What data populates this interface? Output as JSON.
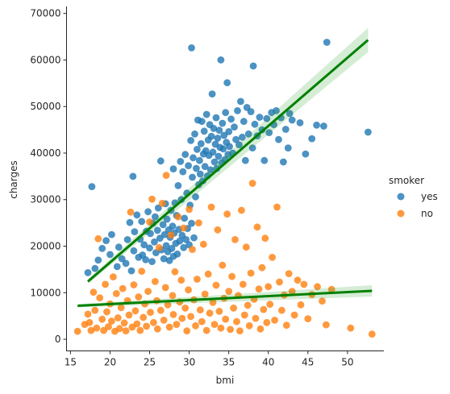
{
  "chart_data": {
    "type": "scatter",
    "title": "",
    "xlabel": "bmi",
    "ylabel": "charges",
    "xlim": [
      14.5,
      54.6
    ],
    "ylim": [
      -2500,
      71500
    ],
    "xticks": [
      15,
      20,
      25,
      30,
      35,
      40,
      45,
      50
    ],
    "yticks": [
      0,
      10000,
      20000,
      30000,
      40000,
      50000,
      60000,
      70000
    ],
    "grid": false,
    "legend": {
      "title": "smoker",
      "placement": "right"
    },
    "series": [
      {
        "name": "yes",
        "color": "#1f77b4",
        "regression": {
          "x": [
            17.2,
            52.6
          ],
          "y": [
            12400,
            64300
          ],
          "ci_color": "#2ca02c"
        },
        "points": [
          [
            17.2,
            14300
          ],
          [
            17.7,
            32800
          ],
          [
            18.1,
            15200
          ],
          [
            18.5,
            17000
          ],
          [
            19.0,
            19500
          ],
          [
            19.5,
            21200
          ],
          [
            20.0,
            18200
          ],
          [
            20.2,
            22500
          ],
          [
            20.9,
            15600
          ],
          [
            21.1,
            19800
          ],
          [
            21.5,
            17300
          ],
          [
            22.0,
            16300
          ],
          [
            22.2,
            21400
          ],
          [
            22.5,
            25100
          ],
          [
            22.7,
            14700
          ],
          [
            22.9,
            35000
          ],
          [
            23.0,
            19000
          ],
          [
            23.1,
            23100
          ],
          [
            23.4,
            26700
          ],
          [
            23.6,
            17600
          ],
          [
            23.8,
            21500
          ],
          [
            24.0,
            25300
          ],
          [
            24.1,
            18100
          ],
          [
            24.3,
            20300
          ],
          [
            24.5,
            17100
          ],
          [
            24.6,
            23200
          ],
          [
            24.8,
            27400
          ],
          [
            25.0,
            19600
          ],
          [
            25.1,
            22700
          ],
          [
            25.3,
            16700
          ],
          [
            25.4,
            24900
          ],
          [
            25.6,
            20900
          ],
          [
            25.7,
            26300
          ],
          [
            25.8,
            18600
          ],
          [
            26.0,
            23400
          ],
          [
            26.1,
            28200
          ],
          [
            26.3,
            21700
          ],
          [
            26.4,
            38300
          ],
          [
            26.5,
            19200
          ],
          [
            26.7,
            24600
          ],
          [
            26.8,
            17300
          ],
          [
            26.9,
            22500
          ],
          [
            27.0,
            29100
          ],
          [
            27.1,
            20100
          ],
          [
            27.2,
            25800
          ],
          [
            27.3,
            18800
          ],
          [
            27.4,
            23500
          ],
          [
            27.5,
            16900
          ],
          [
            27.6,
            21900
          ],
          [
            27.7,
            27700
          ],
          [
            27.8,
            19500
          ],
          [
            27.9,
            24300
          ],
          [
            28.0,
            17800
          ],
          [
            28.0,
            36600
          ],
          [
            28.1,
            22800
          ],
          [
            28.2,
            29300
          ],
          [
            28.3,
            20600
          ],
          [
            28.4,
            26600
          ],
          [
            28.5,
            18300
          ],
          [
            28.6,
            33000
          ],
          [
            28.7,
            23600
          ],
          [
            28.8,
            21100
          ],
          [
            28.9,
            38200
          ],
          [
            29.0,
            30000
          ],
          [
            29.1,
            22300
          ],
          [
            29.2,
            36000
          ],
          [
            29.3,
            19700
          ],
          [
            29.4,
            26000
          ],
          [
            29.5,
            39700
          ],
          [
            29.6,
            21400
          ],
          [
            29.7,
            31400
          ],
          [
            29.8,
            23800
          ],
          [
            29.9,
            37300
          ],
          [
            30.0,
            20300
          ],
          [
            30.1,
            28800
          ],
          [
            30.2,
            42700
          ],
          [
            30.3,
            24900
          ],
          [
            30.3,
            62600
          ],
          [
            30.4,
            34800
          ],
          [
            30.5,
            39000
          ],
          [
            30.6,
            21800
          ],
          [
            30.7,
            44100
          ],
          [
            30.8,
            30600
          ],
          [
            30.9,
            36700
          ],
          [
            31.0,
            40800
          ],
          [
            31.1,
            47100
          ],
          [
            31.2,
            33200
          ],
          [
            31.3,
            38400
          ],
          [
            31.4,
            35500
          ],
          [
            31.5,
            42000
          ],
          [
            31.6,
            46800
          ],
          [
            31.7,
            34000
          ],
          [
            31.8,
            39800
          ],
          [
            31.9,
            44700
          ],
          [
            32.0,
            37100
          ],
          [
            32.1,
            40500
          ],
          [
            32.2,
            48300
          ],
          [
            32.3,
            35100
          ],
          [
            32.4,
            42800
          ],
          [
            32.5,
            39500
          ],
          [
            32.6,
            46100
          ],
          [
            32.7,
            36400
          ],
          [
            32.8,
            43600
          ],
          [
            32.9,
            52700
          ],
          [
            33.0,
            40200
          ],
          [
            33.1,
            45300
          ],
          [
            33.2,
            38100
          ],
          [
            33.3,
            41900
          ],
          [
            33.4,
            47600
          ],
          [
            33.5,
            36700
          ],
          [
            33.6,
            43200
          ],
          [
            33.7,
            39300
          ],
          [
            33.8,
            44900
          ],
          [
            33.9,
            41200
          ],
          [
            34.0,
            60000
          ],
          [
            34.1,
            37900
          ],
          [
            34.2,
            46400
          ],
          [
            34.3,
            40900
          ],
          [
            34.4,
            43800
          ],
          [
            34.5,
            38600
          ],
          [
            34.6,
            48700
          ],
          [
            34.7,
            42300
          ],
          [
            34.8,
            55100
          ],
          [
            34.9,
            39700
          ],
          [
            35.0,
            44600
          ],
          [
            35.1,
            41400
          ],
          [
            35.3,
            47300
          ],
          [
            35.5,
            40000
          ],
          [
            35.7,
            45600
          ],
          [
            35.9,
            42900
          ],
          [
            36.1,
            49100
          ],
          [
            36.3,
            41800
          ],
          [
            36.5,
            51100
          ],
          [
            36.7,
            43400
          ],
          [
            36.9,
            46800
          ],
          [
            37.1,
            38400
          ],
          [
            37.3,
            49800
          ],
          [
            37.5,
            44100
          ],
          [
            37.8,
            48900
          ],
          [
            38.0,
            41100
          ],
          [
            38.1,
            58700
          ],
          [
            38.3,
            46200
          ],
          [
            38.6,
            43700
          ],
          [
            38.9,
            47700
          ],
          [
            39.2,
            45000
          ],
          [
            39.5,
            38400
          ],
          [
            39.8,
            47400
          ],
          [
            40.1,
            44400
          ],
          [
            40.4,
            48700
          ],
          [
            40.7,
            46100
          ],
          [
            41.0,
            49100
          ],
          [
            41.3,
            42900
          ],
          [
            41.6,
            47600
          ],
          [
            41.9,
            38100
          ],
          [
            42.2,
            45100
          ],
          [
            42.5,
            41100
          ],
          [
            42.7,
            48500
          ],
          [
            43.0,
            47100
          ],
          [
            44.0,
            46500
          ],
          [
            44.7,
            39800
          ],
          [
            45.5,
            43100
          ],
          [
            46.1,
            46000
          ],
          [
            47.0,
            45800
          ],
          [
            47.4,
            63800
          ],
          [
            52.6,
            44500
          ]
        ]
      },
      {
        "name": "no",
        "color": "#ff7f0e",
        "regression": {
          "x": [
            15.9,
            53.1
          ],
          "y": [
            7200,
            10400
          ],
          "ci_color": "#2ca02c"
        },
        "points": [
          [
            15.9,
            1700
          ],
          [
            16.8,
            3200
          ],
          [
            17.2,
            5400
          ],
          [
            17.4,
            3600
          ],
          [
            17.6,
            1900
          ],
          [
            17.9,
            10100
          ],
          [
            18.1,
            6200
          ],
          [
            18.3,
            2400
          ],
          [
            18.5,
            21600
          ],
          [
            18.7,
            8900
          ],
          [
            19.0,
            4300
          ],
          [
            19.2,
            1900
          ],
          [
            19.4,
            11800
          ],
          [
            19.6,
            5900
          ],
          [
            19.8,
            2700
          ],
          [
            20.0,
            7600
          ],
          [
            20.2,
            3900
          ],
          [
            20.4,
            13400
          ],
          [
            20.6,
            1700
          ],
          [
            20.8,
            9800
          ],
          [
            21.0,
            4600
          ],
          [
            21.2,
            2300
          ],
          [
            21.4,
            6800
          ],
          [
            21.6,
            10900
          ],
          [
            21.8,
            3500
          ],
          [
            22.0,
            1800
          ],
          [
            22.2,
            8300
          ],
          [
            22.4,
            5200
          ],
          [
            22.6,
            27300
          ],
          [
            22.8,
            2600
          ],
          [
            23.0,
            11700
          ],
          [
            23.2,
            6100
          ],
          [
            23.4,
            3300
          ],
          [
            23.6,
            9100
          ],
          [
            23.8,
            1900
          ],
          [
            24.0,
            14600
          ],
          [
            24.2,
            4700
          ],
          [
            24.4,
            7600
          ],
          [
            24.6,
            2800
          ],
          [
            24.8,
            10300
          ],
          [
            25.0,
            25200
          ],
          [
            25.1,
            5800
          ],
          [
            25.3,
            30100
          ],
          [
            25.5,
            3600
          ],
          [
            25.7,
            12400
          ],
          [
            25.9,
            8300
          ],
          [
            26.0,
            2200
          ],
          [
            26.2,
            19700
          ],
          [
            26.4,
            6200
          ],
          [
            26.6,
            29200
          ],
          [
            26.8,
            4100
          ],
          [
            27.0,
            11100
          ],
          [
            27.1,
            35200
          ],
          [
            27.3,
            7400
          ],
          [
            27.5,
            2600
          ],
          [
            27.7,
            22400
          ],
          [
            27.9,
            9400
          ],
          [
            28.0,
            5300
          ],
          [
            28.2,
            14500
          ],
          [
            28.4,
            3200
          ],
          [
            28.6,
            26300
          ],
          [
            28.8,
            8000
          ],
          [
            29.0,
            12700
          ],
          [
            29.1,
            4500
          ],
          [
            29.3,
            23900
          ],
          [
            29.5,
            6700
          ],
          [
            29.7,
            1800
          ],
          [
            29.9,
            10600
          ],
          [
            30.0,
            27900
          ],
          [
            30.2,
            4900
          ],
          [
            30.4,
            19300
          ],
          [
            30.6,
            8500
          ],
          [
            30.8,
            2900
          ],
          [
            31.0,
            12900
          ],
          [
            31.2,
            25000
          ],
          [
            31.4,
            6300
          ],
          [
            31.6,
            3800
          ],
          [
            31.8,
            20400
          ],
          [
            32.0,
            9700
          ],
          [
            32.2,
            1900
          ],
          [
            32.4,
            14000
          ],
          [
            32.6,
            5600
          ],
          [
            32.8,
            28400
          ],
          [
            33.0,
            7900
          ],
          [
            33.2,
            3200
          ],
          [
            33.4,
            11600
          ],
          [
            33.6,
            23500
          ],
          [
            33.8,
            6000
          ],
          [
            34.0,
            2400
          ],
          [
            34.2,
            15900
          ],
          [
            34.4,
            8800
          ],
          [
            34.6,
            4300
          ],
          [
            34.8,
            26900
          ],
          [
            35.0,
            10300
          ],
          [
            35.2,
            2100
          ],
          [
            35.4,
            13500
          ],
          [
            35.6,
            6700
          ],
          [
            35.8,
            21400
          ],
          [
            36.0,
            3800
          ],
          [
            36.2,
            9400
          ],
          [
            36.4,
            1800
          ],
          [
            36.6,
            27700
          ],
          [
            36.8,
            11800
          ],
          [
            37.0,
            5200
          ],
          [
            37.2,
            19800
          ],
          [
            37.4,
            7300
          ],
          [
            37.6,
            2900
          ],
          [
            37.8,
            14200
          ],
          [
            38.0,
            33500
          ],
          [
            38.2,
            8600
          ],
          [
            38.4,
            4500
          ],
          [
            38.6,
            24100
          ],
          [
            38.8,
            10800
          ],
          [
            39.0,
            2200
          ],
          [
            39.2,
            15400
          ],
          [
            39.4,
            6400
          ],
          [
            39.6,
            21700
          ],
          [
            39.8,
            3600
          ],
          [
            40.0,
            11300
          ],
          [
            40.2,
            7500
          ],
          [
            40.5,
            17600
          ],
          [
            40.8,
            4100
          ],
          [
            41.1,
            28400
          ],
          [
            41.4,
            12300
          ],
          [
            41.7,
            6200
          ],
          [
            42.0,
            9500
          ],
          [
            42.3,
            3000
          ],
          [
            42.6,
            14100
          ],
          [
            43.0,
            10300
          ],
          [
            43.3,
            5200
          ],
          [
            43.7,
            12700
          ],
          [
            44.1,
            7400
          ],
          [
            44.5,
            11800
          ],
          [
            45.0,
            4400
          ],
          [
            45.5,
            9600
          ],
          [
            46.2,
            11300
          ],
          [
            46.8,
            8200
          ],
          [
            47.3,
            3100
          ],
          [
            48.0,
            10700
          ],
          [
            50.4,
            2400
          ],
          [
            53.1,
            1100
          ]
        ]
      }
    ]
  }
}
